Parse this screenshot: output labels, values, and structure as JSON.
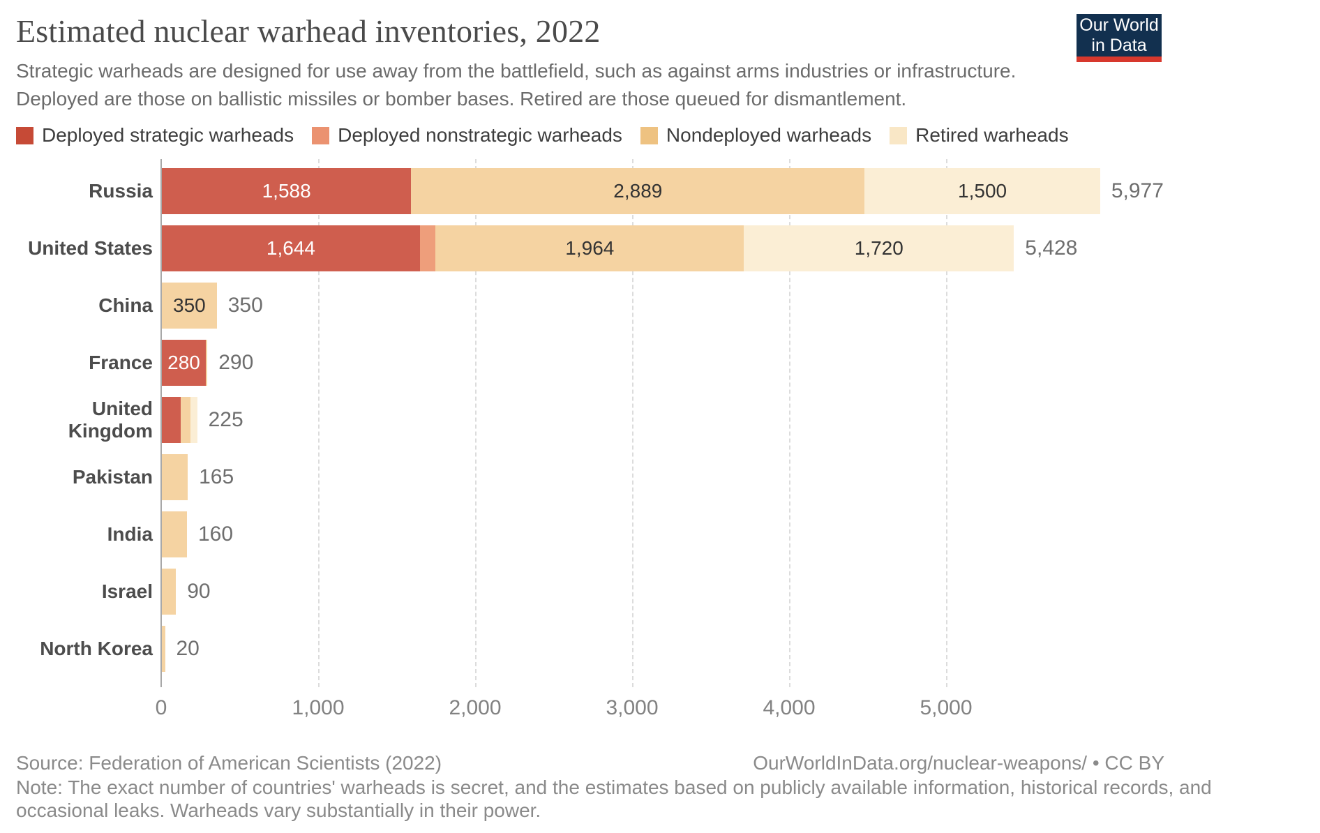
{
  "header": {
    "title": "Estimated nuclear warhead inventories, 2022",
    "subtitle": "Strategic warheads are designed for use away from the battlefield, such as against arms industries or infrastructure.\nDeployed are those on ballistic missiles or bomber bases. Retired are those queued for dismantlement.",
    "logo": {
      "line1": "Our World",
      "line2": "in Data",
      "bg_color": "#12304f",
      "strip_color": "#d7382d"
    }
  },
  "legend": {
    "items": [
      {
        "label": "Deployed strategic warheads",
        "color": "#c64a36"
      },
      {
        "label": "Deployed nonstrategic warheads",
        "color": "#eb9270"
      },
      {
        "label": "Nondeployed warheads",
        "color": "#eec281"
      },
      {
        "label": "Retired warheads",
        "color": "#f9e7c6"
      }
    ]
  },
  "chart_data": {
    "type": "bar",
    "orientation": "horizontal",
    "stacked": true,
    "title": "Estimated nuclear warhead inventories, 2022",
    "categories": [
      "Russia",
      "United States",
      "China",
      "France",
      "United Kingdom",
      "Pakistan",
      "India",
      "Israel",
      "North Korea"
    ],
    "series": [
      {
        "name": "Deployed strategic warheads",
        "color": "#cf5e4e",
        "label_color": "#ffffff",
        "values": [
          1588,
          1644,
          0,
          280,
          120,
          0,
          0,
          0,
          0
        ]
      },
      {
        "name": "Deployed nonstrategic warheads",
        "color": "#ee9e7b",
        "label_color": "#ffffff",
        "values": [
          0,
          100,
          0,
          0,
          0,
          0,
          0,
          0,
          0
        ]
      },
      {
        "name": "Nondeployed warheads",
        "color": "#f5d3a2",
        "label_color": "#333333",
        "values": [
          2889,
          1964,
          350,
          10,
          60,
          165,
          160,
          90,
          20
        ]
      },
      {
        "name": "Retired warheads",
        "color": "#fbeed5",
        "label_color": "#333333",
        "values": [
          1500,
          1720,
          0,
          0,
          45,
          0,
          0,
          0,
          0
        ]
      }
    ],
    "totals": [
      5977,
      5428,
      350,
      290,
      225,
      165,
      160,
      90,
      20
    ],
    "total_labels": [
      "5,977",
      "5,428",
      "350",
      "290",
      "225",
      "165",
      "160",
      "90",
      "20"
    ],
    "x_tick_values": [
      0,
      1000,
      2000,
      3000,
      4000,
      5000
    ],
    "x_tick_labels": [
      "0",
      "1,000",
      "2,000",
      "3,000",
      "4,000",
      "5,000"
    ],
    "xlim": [
      0,
      5977
    ],
    "grid": "dashed-vertical",
    "legend_position": "top"
  },
  "footer": {
    "source": "Source: Federation of American Scientists (2022)",
    "link": "OurWorldInData.org/nuclear-weapons/ • CC BY",
    "note": "Note: The exact number of countries' warheads is secret, and the estimates based on publicly available information, historical records, and\noccasional leaks. Warheads vary substantially in their power."
  },
  "colors": {
    "title": "#4a4a4a",
    "subtitle": "#6b6b6b",
    "axis_labels": "#828282",
    "country_labels": "#4c4c4c",
    "totals": "#6e6e6e",
    "gridline": "#dcdcdc",
    "zero_axis": "#a8a8a8"
  }
}
